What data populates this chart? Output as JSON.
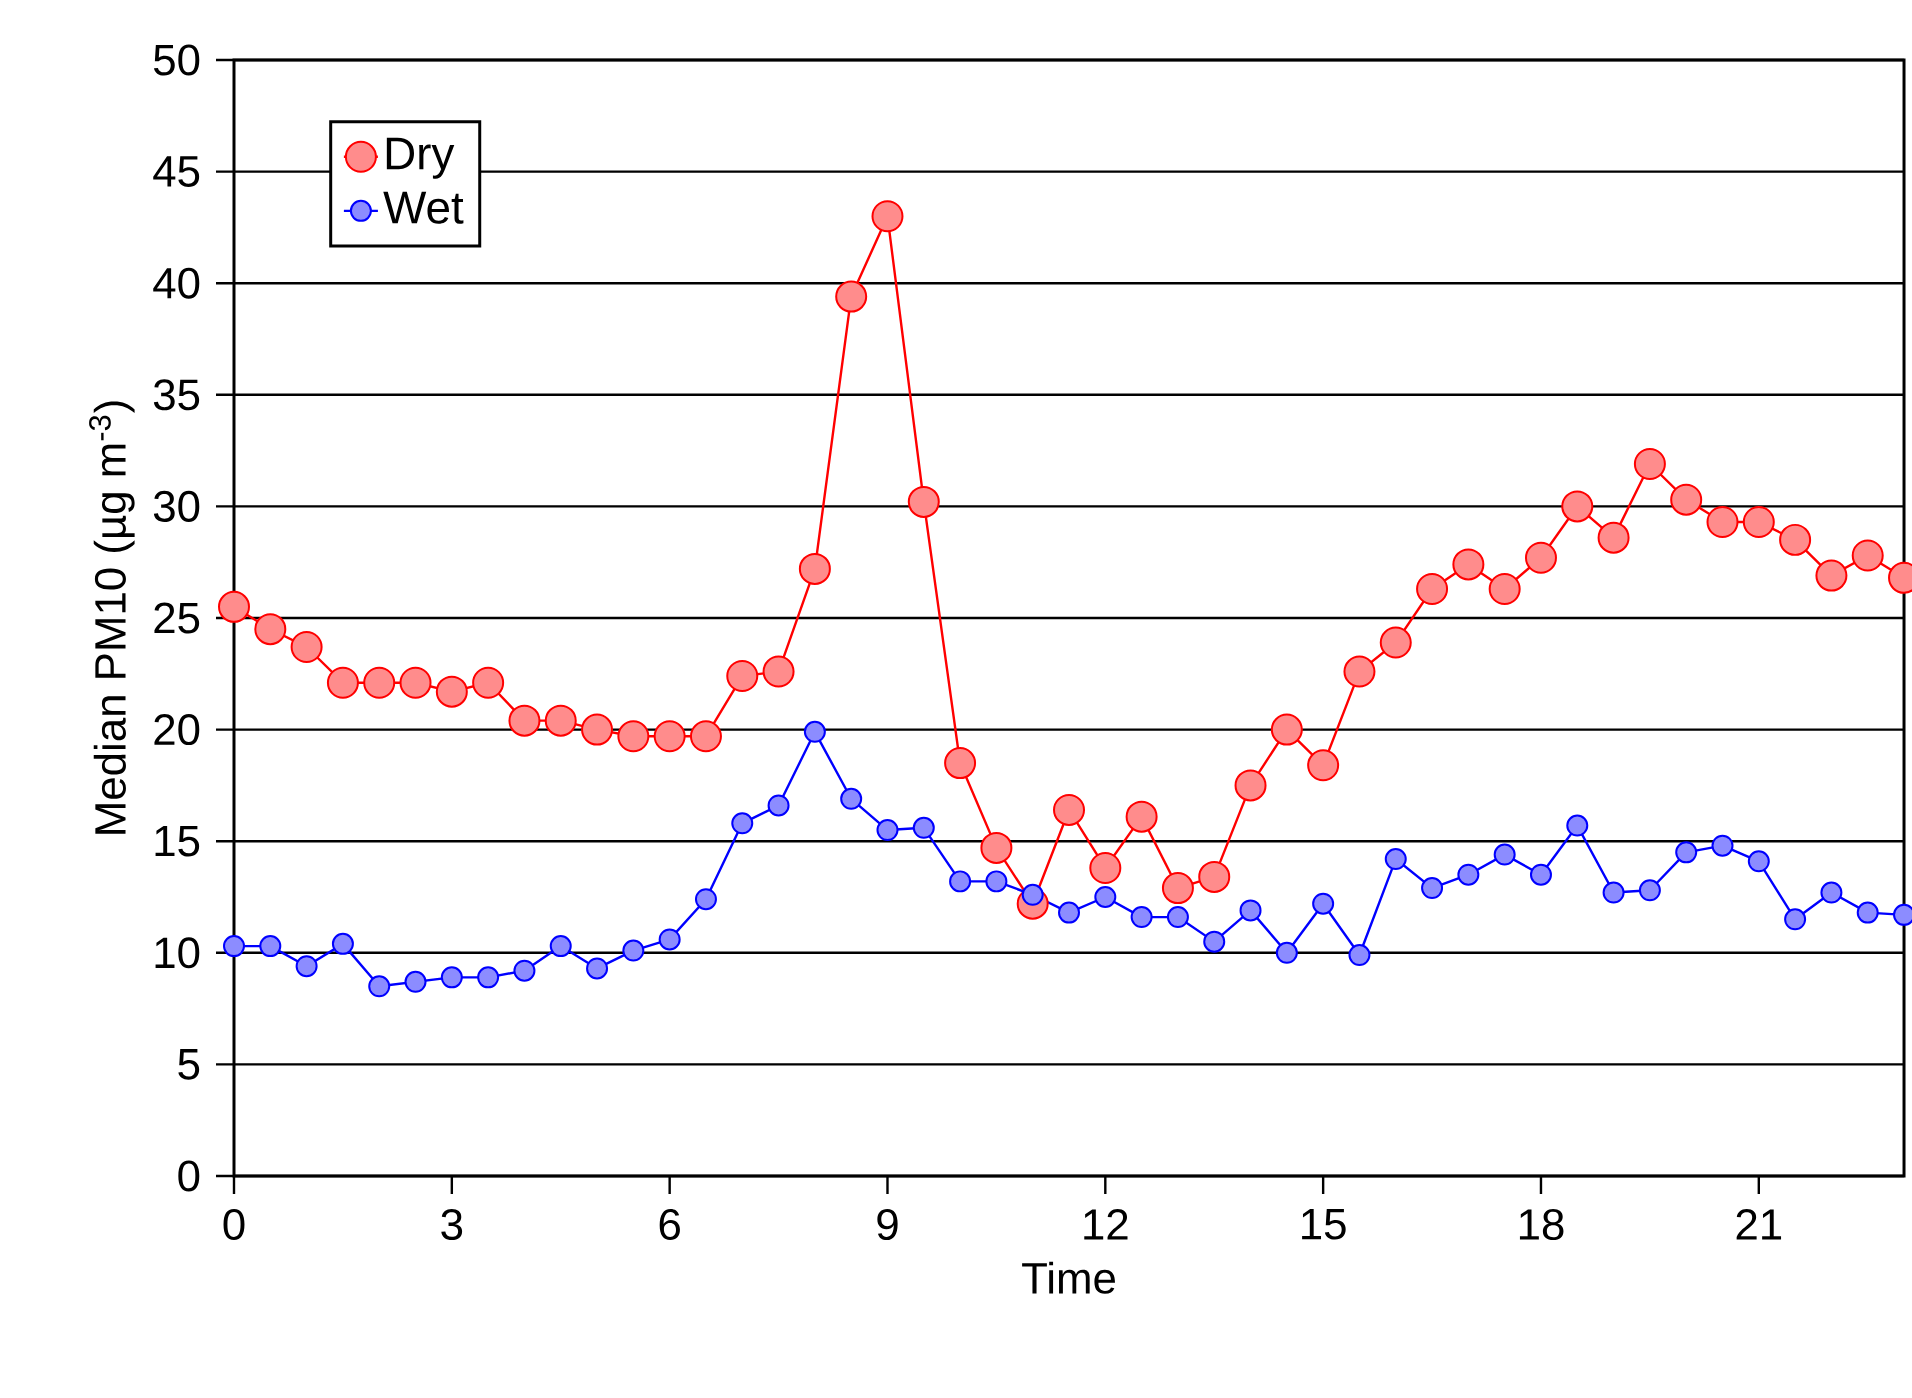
{
  "chart_data": {
    "type": "line",
    "xlabel": "Time",
    "ylabel": "Median PM10 (µg m$^{-3}$)",
    "x": [
      0,
      0.5,
      1,
      1.5,
      2,
      2.5,
      3,
      3.5,
      4,
      4.5,
      5,
      5.5,
      6,
      6.5,
      7,
      7.5,
      8,
      8.5,
      9,
      9.5,
      10,
      10.5,
      11,
      11.5,
      12,
      12.5,
      13,
      13.5,
      14,
      14.5,
      15,
      15.5,
      16,
      16.5,
      17,
      17.5,
      18,
      18.5,
      19,
      19.5,
      20,
      20.5,
      21,
      21.5,
      22,
      22.5,
      23
    ],
    "series": [
      {
        "name": "Dry",
        "color": "#ff0000",
        "values": [
          25.5,
          24.5,
          23.7,
          22.1,
          22.1,
          22.1,
          21.7,
          22.1,
          20.4,
          20.4,
          20.0,
          19.7,
          19.7,
          19.7,
          22.4,
          22.6,
          27.2,
          39.4,
          43.0,
          30.2,
          18.5,
          14.7,
          12.2,
          16.4,
          13.8,
          16.1,
          12.9,
          13.4,
          17.5,
          20.0,
          18.4,
          22.6,
          23.9,
          26.3,
          27.4,
          26.3,
          27.7,
          30.0,
          28.6,
          31.9,
          30.3,
          29.3,
          29.3,
          28.5,
          26.9,
          27.8,
          26.8
        ]
      },
      {
        "name": "Wet",
        "color": "#0000ff",
        "values": [
          10.3,
          10.3,
          9.4,
          10.4,
          8.5,
          8.7,
          8.9,
          8.9,
          9.2,
          10.3,
          9.3,
          10.1,
          10.6,
          12.4,
          15.8,
          16.6,
          19.9,
          16.9,
          15.5,
          15.6,
          13.2,
          13.2,
          12.6,
          11.8,
          12.5,
          11.6,
          11.6,
          10.5,
          11.9,
          10.0,
          12.2,
          9.9,
          14.2,
          12.9,
          13.5,
          14.4,
          13.5,
          15.7,
          12.7,
          12.8,
          14.5,
          14.8,
          14.1,
          11.5,
          12.7,
          11.8,
          11.7
        ]
      }
    ],
    "xlim": [
      0,
      23
    ],
    "xticks": [
      0,
      3,
      6,
      9,
      12,
      15,
      18,
      21
    ],
    "ylim": [
      0,
      50
    ],
    "yticks": [
      0,
      5,
      10,
      15,
      20,
      25,
      30,
      35,
      40,
      45,
      50
    ],
    "grid": "y",
    "legend": "top left",
    "marker": "circle"
  }
}
